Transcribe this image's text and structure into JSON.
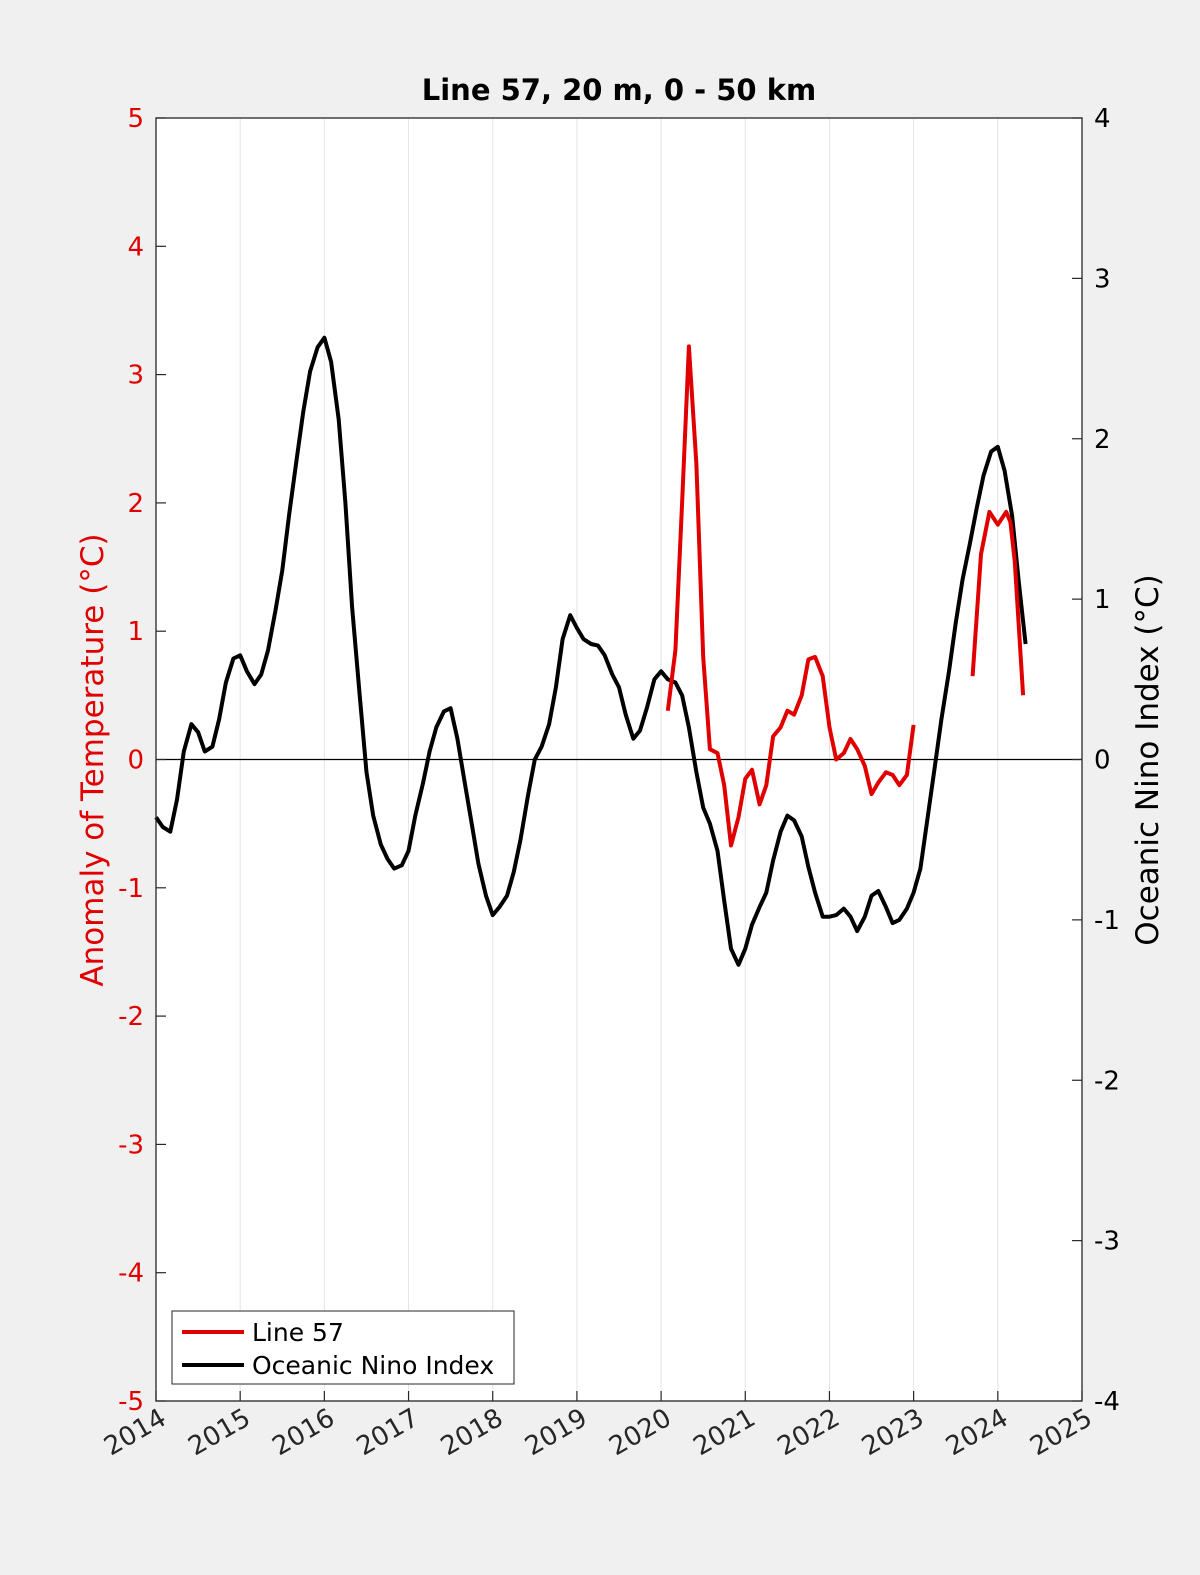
{
  "chart_data": {
    "type": "line",
    "title": "Line 57, 20 m, 0 - 50 km",
    "ylabel_left": "Anomaly of Temperature (°C)",
    "ylabel_right": "Oceanic Nino Index (°C)",
    "xlabel": "",
    "xlim": [
      2014,
      2025
    ],
    "ylim_left": [
      -5,
      5
    ],
    "ylim_right": [
      -4,
      4
    ],
    "x_ticks": [
      "2014",
      "2015",
      "2016",
      "2017",
      "2018",
      "2019",
      "2020",
      "2021",
      "2022",
      "2023",
      "2024",
      "2025"
    ],
    "y_ticks_left": [
      "5",
      "4",
      "3",
      "2",
      "1",
      "0",
      "-1",
      "-2",
      "-3",
      "-4",
      "-5"
    ],
    "y_ticks_right": [
      "4",
      "3",
      "2",
      "1",
      "0",
      "-1",
      "-2",
      "-3",
      "-4"
    ],
    "grid": "vertical",
    "zero_line": true,
    "legend": {
      "placement": "bottom-left",
      "items": [
        "Line 57",
        "Oceanic Nino Index"
      ]
    },
    "colors": {
      "line57": "#e00000",
      "oni": "#000000",
      "left_axis": "#e00000",
      "right_axis": "#000000",
      "background": "#f0f0f0",
      "plot_area": "#ffffff"
    },
    "series": [
      {
        "name": "Line 57",
        "axis": "left",
        "color": "#e00000",
        "segments": [
          [
            [
              2020.08,
              0.38
            ],
            [
              2020.17,
              0.85
            ],
            [
              2020.25,
              2.0
            ],
            [
              2020.33,
              3.22
            ],
            [
              2020.42,
              2.3
            ],
            [
              2020.5,
              0.8
            ],
            [
              2020.58,
              0.08
            ],
            [
              2020.67,
              0.05
            ],
            [
              2020.75,
              -0.2
            ],
            [
              2020.83,
              -0.67
            ],
            [
              2020.92,
              -0.45
            ],
            [
              2021.0,
              -0.15
            ],
            [
              2021.08,
              -0.08
            ],
            [
              2021.17,
              -0.35
            ],
            [
              2021.25,
              -0.2
            ],
            [
              2021.33,
              0.18
            ],
            [
              2021.42,
              0.25
            ],
            [
              2021.5,
              0.38
            ],
            [
              2021.58,
              0.35
            ],
            [
              2021.67,
              0.5
            ],
            [
              2021.75,
              0.78
            ],
            [
              2021.83,
              0.8
            ],
            [
              2021.92,
              0.65
            ],
            [
              2022.0,
              0.25
            ],
            [
              2022.08,
              0.0
            ],
            [
              2022.17,
              0.05
            ],
            [
              2022.25,
              0.16
            ],
            [
              2022.33,
              0.08
            ],
            [
              2022.42,
              -0.05
            ],
            [
              2022.5,
              -0.27
            ],
            [
              2022.58,
              -0.18
            ],
            [
              2022.67,
              -0.1
            ],
            [
              2022.75,
              -0.12
            ],
            [
              2022.83,
              -0.2
            ],
            [
              2022.92,
              -0.12
            ],
            [
              2023.0,
              0.27
            ]
          ],
          [
            [
              2023.7,
              0.65
            ],
            [
              2023.8,
              1.6
            ],
            [
              2023.9,
              1.93
            ],
            [
              2024.0,
              1.83
            ],
            [
              2024.1,
              1.93
            ],
            [
              2024.15,
              1.85
            ],
            [
              2024.2,
              1.55
            ],
            [
              2024.3,
              0.5
            ]
          ]
        ]
      },
      {
        "name": "Oceanic Nino Index",
        "axis": "right",
        "color": "#000000",
        "values": [
          [
            2014.0,
            -0.36
          ],
          [
            2014.08,
            -0.42
          ],
          [
            2014.17,
            -0.45
          ],
          [
            2014.25,
            -0.25
          ],
          [
            2014.33,
            0.05
          ],
          [
            2014.42,
            0.22
          ],
          [
            2014.5,
            0.17
          ],
          [
            2014.58,
            0.05
          ],
          [
            2014.67,
            0.08
          ],
          [
            2014.75,
            0.25
          ],
          [
            2014.83,
            0.48
          ],
          [
            2014.92,
            0.63
          ],
          [
            2015.0,
            0.65
          ],
          [
            2015.08,
            0.55
          ],
          [
            2015.17,
            0.47
          ],
          [
            2015.25,
            0.53
          ],
          [
            2015.33,
            0.68
          ],
          [
            2015.42,
            0.93
          ],
          [
            2015.5,
            1.18
          ],
          [
            2015.58,
            1.52
          ],
          [
            2015.67,
            1.87
          ],
          [
            2015.75,
            2.17
          ],
          [
            2015.83,
            2.42
          ],
          [
            2015.92,
            2.57
          ],
          [
            2016.0,
            2.63
          ],
          [
            2016.08,
            2.48
          ],
          [
            2016.17,
            2.12
          ],
          [
            2016.25,
            1.6
          ],
          [
            2016.33,
            0.95
          ],
          [
            2016.42,
            0.4
          ],
          [
            2016.5,
            -0.08
          ],
          [
            2016.58,
            -0.35
          ],
          [
            2016.67,
            -0.53
          ],
          [
            2016.75,
            -0.62
          ],
          [
            2016.83,
            -0.68
          ],
          [
            2016.92,
            -0.66
          ],
          [
            2017.0,
            -0.57
          ],
          [
            2017.08,
            -0.35
          ],
          [
            2017.17,
            -0.15
          ],
          [
            2017.25,
            0.05
          ],
          [
            2017.33,
            0.2
          ],
          [
            2017.42,
            0.3
          ],
          [
            2017.5,
            0.32
          ],
          [
            2017.58,
            0.13
          ],
          [
            2017.67,
            -0.15
          ],
          [
            2017.75,
            -0.4
          ],
          [
            2017.83,
            -0.65
          ],
          [
            2017.92,
            -0.85
          ],
          [
            2018.0,
            -0.97
          ],
          [
            2018.08,
            -0.92
          ],
          [
            2018.17,
            -0.85
          ],
          [
            2018.25,
            -0.7
          ],
          [
            2018.33,
            -0.5
          ],
          [
            2018.42,
            -0.22
          ],
          [
            2018.5,
            0.0
          ],
          [
            2018.58,
            0.08
          ],
          [
            2018.67,
            0.22
          ],
          [
            2018.75,
            0.45
          ],
          [
            2018.83,
            0.75
          ],
          [
            2018.92,
            0.9
          ],
          [
            2019.0,
            0.82
          ],
          [
            2019.08,
            0.75
          ],
          [
            2019.17,
            0.72
          ],
          [
            2019.25,
            0.71
          ],
          [
            2019.33,
            0.65
          ],
          [
            2019.42,
            0.53
          ],
          [
            2019.5,
            0.45
          ],
          [
            2019.58,
            0.28
          ],
          [
            2019.67,
            0.13
          ],
          [
            2019.75,
            0.18
          ],
          [
            2019.83,
            0.32
          ],
          [
            2019.92,
            0.5
          ],
          [
            2020.0,
            0.55
          ],
          [
            2020.08,
            0.5
          ],
          [
            2020.17,
            0.48
          ],
          [
            2020.25,
            0.4
          ],
          [
            2020.33,
            0.2
          ],
          [
            2020.42,
            -0.08
          ],
          [
            2020.5,
            -0.3
          ],
          [
            2020.58,
            -0.4
          ],
          [
            2020.67,
            -0.57
          ],
          [
            2020.75,
            -0.88
          ],
          [
            2020.83,
            -1.18
          ],
          [
            2020.92,
            -1.28
          ],
          [
            2021.0,
            -1.18
          ],
          [
            2021.08,
            -1.03
          ],
          [
            2021.17,
            -0.92
          ],
          [
            2021.25,
            -0.83
          ],
          [
            2021.33,
            -0.63
          ],
          [
            2021.42,
            -0.45
          ],
          [
            2021.5,
            -0.35
          ],
          [
            2021.58,
            -0.38
          ],
          [
            2021.67,
            -0.48
          ],
          [
            2021.75,
            -0.67
          ],
          [
            2021.83,
            -0.83
          ],
          [
            2021.92,
            -0.98
          ],
          [
            2022.0,
            -0.98
          ],
          [
            2022.08,
            -0.97
          ],
          [
            2022.17,
            -0.93
          ],
          [
            2022.25,
            -0.98
          ],
          [
            2022.33,
            -1.07
          ],
          [
            2022.42,
            -0.98
          ],
          [
            2022.5,
            -0.85
          ],
          [
            2022.58,
            -0.82
          ],
          [
            2022.67,
            -0.92
          ],
          [
            2022.75,
            -1.02
          ],
          [
            2022.83,
            -1.0
          ],
          [
            2022.92,
            -0.93
          ],
          [
            2023.0,
            -0.83
          ],
          [
            2023.08,
            -0.68
          ],
          [
            2023.17,
            -0.35
          ],
          [
            2023.25,
            -0.05
          ],
          [
            2023.33,
            0.25
          ],
          [
            2023.42,
            0.55
          ],
          [
            2023.5,
            0.85
          ],
          [
            2023.58,
            1.12
          ],
          [
            2023.67,
            1.35
          ],
          [
            2023.75,
            1.57
          ],
          [
            2023.83,
            1.77
          ],
          [
            2023.92,
            1.92
          ],
          [
            2024.0,
            1.95
          ],
          [
            2024.08,
            1.8
          ],
          [
            2024.17,
            1.52
          ],
          [
            2024.25,
            1.1
          ],
          [
            2024.33,
            0.72
          ]
        ]
      }
    ]
  }
}
